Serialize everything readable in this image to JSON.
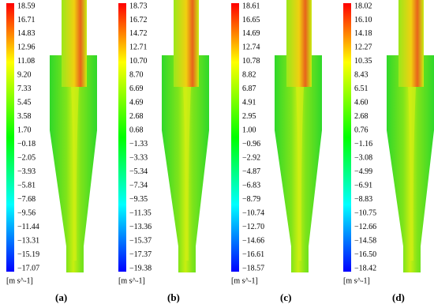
{
  "panels": [
    {
      "label": "(a)",
      "unit": "[m s^-1]",
      "ticks": [
        "18.59",
        "16.71",
        "14.83",
        "12.96",
        "11.08",
        "9.20",
        "7.33",
        "5.45",
        "3.58",
        "1.70",
        "−0.18",
        "−2.05",
        "−3.93",
        "−5.81",
        "−7.68",
        "−9.56",
        "−11.44",
        "−13.31",
        "−15.19",
        "−17.07"
      ]
    },
    {
      "label": "(b)",
      "unit": "[m s^-1]",
      "ticks": [
        "18.73",
        "16.72",
        "14.72",
        "12.71",
        "10.70",
        "8.70",
        "6.69",
        "4.69",
        "2.68",
        "0.68",
        "−1.33",
        "−3.33",
        "−5.34",
        "−7.34",
        "−9.35",
        "−11.35",
        "−13.36",
        "−15.37",
        "−17.37",
        "−19.38"
      ]
    },
    {
      "label": "(c)",
      "unit": "[m s^-1]",
      "ticks": [
        "18.61",
        "16.65",
        "14.69",
        "12.74",
        "10.78",
        "8.82",
        "6.87",
        "4.91",
        "2.95",
        "1.00",
        "−0.96",
        "−2.92",
        "−4.87",
        "−6.83",
        "−8.79",
        "−10.74",
        "−12.70",
        "−14.66",
        "−16.61",
        "−18.57"
      ]
    },
    {
      "label": "(d)",
      "unit": "[m s^-1]",
      "ticks": [
        "18.02",
        "16.10",
        "14.18",
        "12.27",
        "10.35",
        "8.43",
        "6.51",
        "4.60",
        "2.68",
        "0.76",
        "−1.16",
        "−3.08",
        "−4.99",
        "−6.91",
        "−8.83",
        "−10.75",
        "−12.66",
        "−14.58",
        "−16.50",
        "−18.42"
      ]
    }
  ]
}
